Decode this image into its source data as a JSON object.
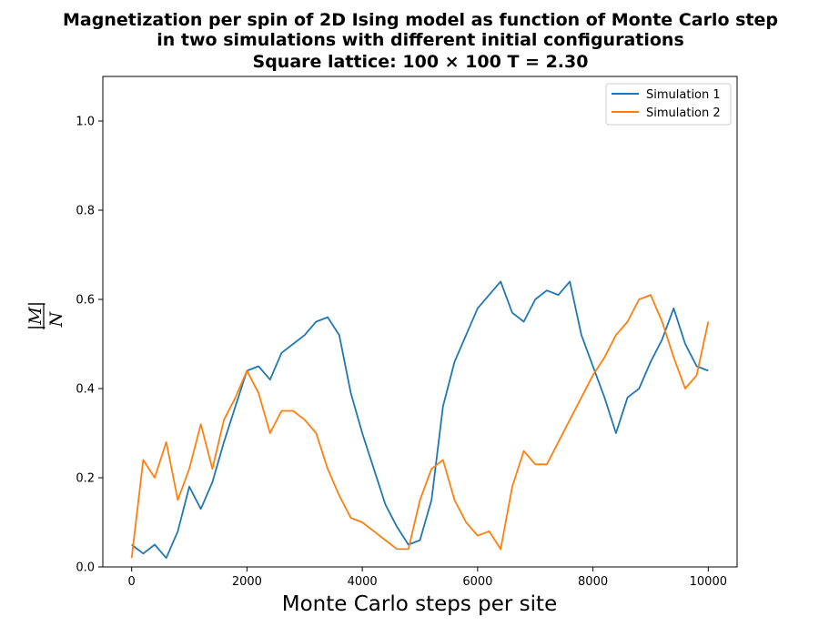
{
  "chart_data": {
    "type": "line",
    "title_lines": [
      "Magnetization per spin of 2D Ising model as function of Monte Carlo step",
      "in two simulations with different initial configurations",
      "Square lattice: 100 × 100    T = 2.30"
    ],
    "xlabel": "Monte Carlo steps per site",
    "ylabel_numerator": "|M|",
    "ylabel_denominator": "N",
    "xlim": [
      -500,
      10500
    ],
    "ylim": [
      0,
      1.1
    ],
    "xticks": [
      0,
      2000,
      4000,
      6000,
      8000,
      10000
    ],
    "xtick_labels": [
      "0",
      "2000",
      "4000",
      "6000",
      "8000",
      "10000"
    ],
    "yticks": [
      0,
      0.2,
      0.4,
      0.6,
      0.8,
      1.0
    ],
    "ytick_labels": [
      "0.0",
      "0.2",
      "0.4",
      "0.6",
      "0.8",
      "1.0"
    ],
    "grid": false,
    "legend_position": "top-right",
    "x": [
      0,
      200,
      400,
      600,
      800,
      1000,
      1200,
      1400,
      1600,
      1800,
      2000,
      2200,
      2400,
      2600,
      2800,
      3000,
      3200,
      3400,
      3600,
      3800,
      4000,
      4200,
      4400,
      4600,
      4800,
      5000,
      5200,
      5400,
      5600,
      5800,
      6000,
      6200,
      6400,
      6600,
      6800,
      7000,
      7200,
      7400,
      7600,
      7800,
      8000,
      8200,
      8400,
      8600,
      8800,
      9000,
      9200,
      9400,
      9600,
      9800,
      10000
    ],
    "series": [
      {
        "name": "Simulation 1",
        "color": "#1f77b4",
        "values": [
          0.05,
          0.03,
          0.05,
          0.02,
          0.08,
          0.18,
          0.13,
          0.19,
          0.28,
          0.36,
          0.44,
          0.45,
          0.42,
          0.48,
          0.5,
          0.52,
          0.55,
          0.56,
          0.52,
          0.39,
          0.3,
          0.22,
          0.14,
          0.09,
          0.05,
          0.06,
          0.15,
          0.36,
          0.46,
          0.52,
          0.58,
          0.61,
          0.64,
          0.57,
          0.55,
          0.6,
          0.62,
          0.61,
          0.64,
          0.52,
          0.45,
          0.38,
          0.3,
          0.38,
          0.4,
          0.46,
          0.51,
          0.58,
          0.5,
          0.45,
          0.44
        ]
      },
      {
        "name": "Simulation 2",
        "color": "#ff7f0e",
        "values": [
          0.02,
          0.24,
          0.2,
          0.28,
          0.15,
          0.22,
          0.32,
          0.22,
          0.33,
          0.38,
          0.44,
          0.39,
          0.3,
          0.35,
          0.35,
          0.33,
          0.3,
          0.22,
          0.16,
          0.11,
          0.1,
          0.08,
          0.06,
          0.04,
          0.04,
          0.15,
          0.22,
          0.24,
          0.15,
          0.1,
          0.07,
          0.08,
          0.04,
          0.18,
          0.26,
          0.23,
          0.23,
          0.28,
          0.33,
          0.38,
          0.43,
          0.47,
          0.52,
          0.55,
          0.6,
          0.61,
          0.55,
          0.47,
          0.4,
          0.43,
          0.55
        ]
      }
    ]
  }
}
